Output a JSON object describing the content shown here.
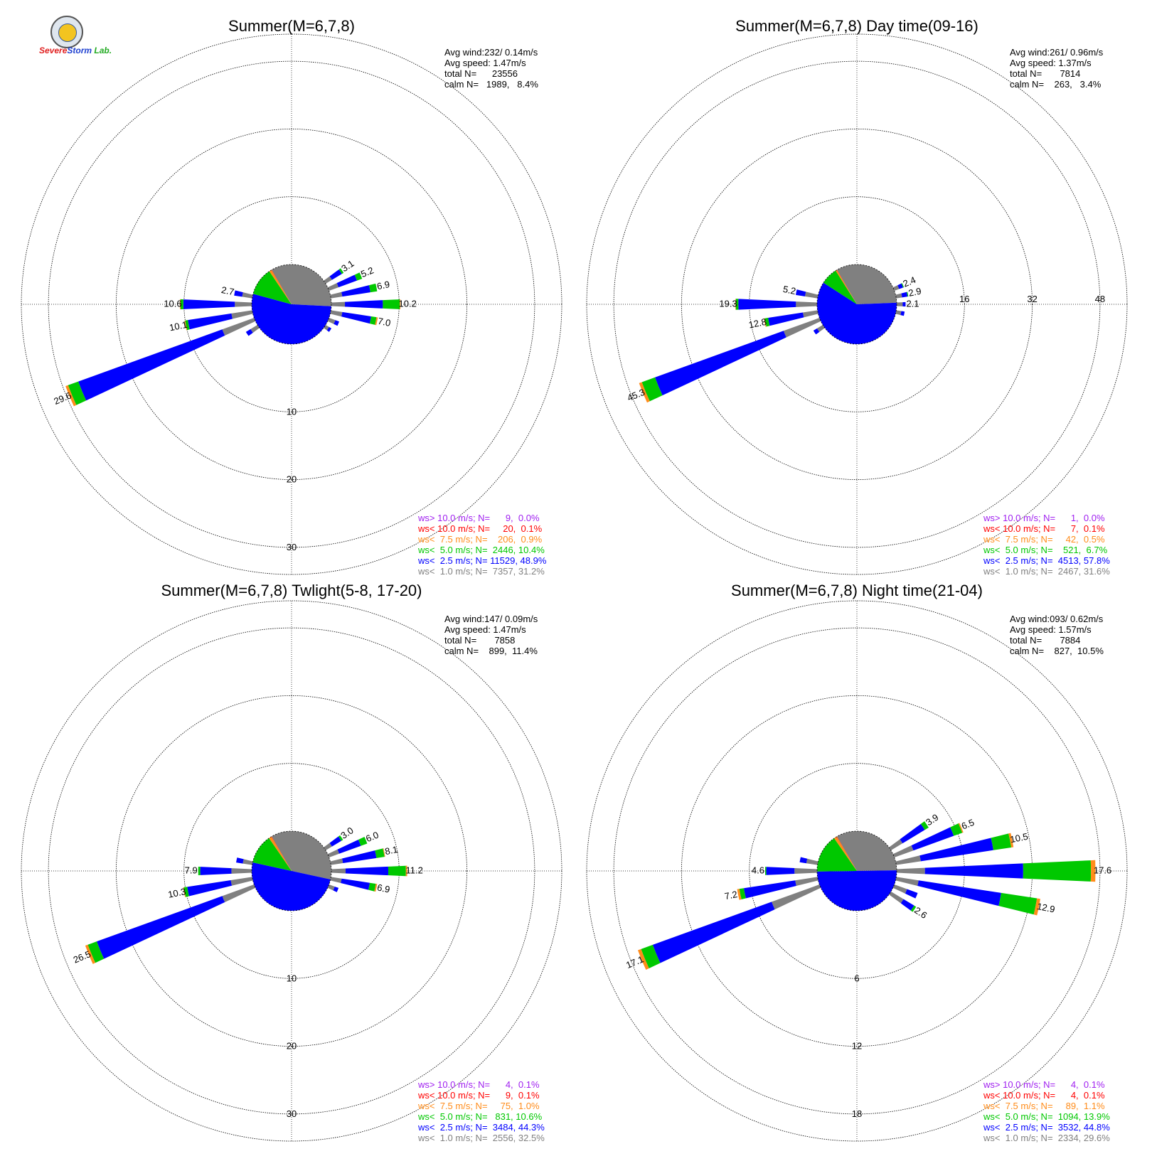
{
  "logo": {
    "text_severe": "Severe",
    "text_storm": "Storm",
    "text_lab": "Lab."
  },
  "chart_data": [
    {
      "type": "wind-rose",
      "title": "Summer(M=6,7,8)",
      "radial_ticks": [
        "10",
        "20",
        "30"
      ],
      "radial_max": 34,
      "radial_tick_position": "bottom",
      "stats": [
        "Avg wind:232/ 0.14m/s",
        "Avg speed: 1.47m/s",
        "total N=      23556",
        "calm N=   1989,   8.4%"
      ],
      "legend": [
        {
          "text": "ws> 10.0 m/s; N=      9,  0.0%",
          "color": "#a020f0"
        },
        {
          "text": "ws< 10.0 m/s; N=     20,  0.1%",
          "color": "#ff0000"
        },
        {
          "text": "ws<  7.5 m/s; N=    206,  0.9%",
          "color": "#ff8c1a"
        },
        {
          "text": "ws<  5.0 m/s; N=  2446, 10.4%",
          "color": "#00c800"
        },
        {
          "text": "ws<  2.5 m/s; N= 11529, 48.9%",
          "color": "#0000ff"
        },
        {
          "text": "ws<  1.0 m/s; N=  7357, 31.2%",
          "color": "#808080"
        }
      ],
      "calm_pie": [
        {
          "value": 31.2,
          "color": "#808080"
        },
        {
          "value": 48.9,
          "color": "#0000ff"
        },
        {
          "value": 10.4,
          "color": "#00c800"
        },
        {
          "value": 0.9,
          "color": "#ff8c1a"
        },
        {
          "value": 0.1,
          "color": "#ff0000"
        }
      ],
      "petals": [
        {
          "dir": 56.25,
          "total": 3.1,
          "label": "3.1",
          "gray": 1.1,
          "blue": 1.7,
          "green": 0.3
        },
        {
          "dir": 67.5,
          "total": 5.2,
          "label": "5.2",
          "gray": 1.5,
          "blue": 2.9,
          "green": 0.8
        },
        {
          "dir": 78.75,
          "total": 6.9,
          "label": "6.9",
          "gray": 1.7,
          "blue": 4.2,
          "green": 1.0
        },
        {
          "dir": 90,
          "total": 10.2,
          "label": "10.2",
          "gray": 2.0,
          "blue": 5.6,
          "green": 2.5,
          "orange": 0.1
        },
        {
          "dir": 101.25,
          "total": 7.0,
          "label": "7.0",
          "gray": 1.7,
          "blue": 4.3,
          "green": 0.8,
          "orange": 0.2
        },
        {
          "dir": 258.75,
          "total": 10.1,
          "label": "10.1",
          "gray": 3.1,
          "blue": 6.5,
          "green": 0.4,
          "orange": 0.1
        },
        {
          "dir": 247.5,
          "total": 29.6,
          "label": "29.6",
          "gray": 5.0,
          "blue": 22.6,
          "green": 1.6,
          "orange": 0.4
        },
        {
          "dir": 270,
          "total": 10.6,
          "label": "10.6",
          "gray": 2.5,
          "blue": 7.6,
          "green": 0.4,
          "orange": 0.1
        },
        {
          "dir": 281.25,
          "total": 2.7,
          "label": "2.7",
          "gray": 1.5,
          "blue": 1.2
        },
        {
          "dir": 236.25,
          "total": 2.0,
          "gray": 1.2,
          "blue": 0.8
        },
        {
          "dir": 112.5,
          "total": 1.6,
          "gray": 1.0,
          "blue": 0.6
        },
        {
          "dir": 123.75,
          "total": 1.0,
          "gray": 0.6,
          "blue": 0.4
        }
      ]
    },
    {
      "type": "wind-rose",
      "title": "Summer(M=6,7,8) Day time(09-16)",
      "radial_ticks": [
        "16",
        "32",
        "48"
      ],
      "radial_max": 55,
      "radial_tick_position": "right",
      "stats": [
        "Avg wind:261/ 0.96m/s",
        "Avg speed: 1.37m/s",
        "total N=       7814",
        "calm N=    263,   3.4%"
      ],
      "legend": [
        {
          "text": "ws> 10.0 m/s; N=      1,  0.0%",
          "color": "#a020f0"
        },
        {
          "text": "ws< 10.0 m/s; N=      7,  0.1%",
          "color": "#ff0000"
        },
        {
          "text": "ws<  7.5 m/s; N=     42,  0.5%",
          "color": "#ff8c1a"
        },
        {
          "text": "ws<  5.0 m/s; N=    521,  6.7%",
          "color": "#00c800"
        },
        {
          "text": "ws<  2.5 m/s; N=  4513, 57.8%",
          "color": "#0000ff"
        },
        {
          "text": "ws<  1.0 m/s; N=  2467, 31.6%",
          "color": "#808080"
        }
      ],
      "calm_pie": [
        {
          "value": 31.6,
          "color": "#808080"
        },
        {
          "value": 57.8,
          "color": "#0000ff"
        },
        {
          "value": 6.7,
          "color": "#00c800"
        },
        {
          "value": 0.5,
          "color": "#ff8c1a"
        },
        {
          "value": 0.1,
          "color": "#ff0000"
        }
      ],
      "petals": [
        {
          "dir": 67.5,
          "total": 2.4,
          "label": "2.4",
          "gray": 1.2,
          "blue": 1.0,
          "green": 0.2
        },
        {
          "dir": 78.75,
          "total": 2.9,
          "label": "2.9",
          "gray": 1.4,
          "blue": 1.3,
          "green": 0.2
        },
        {
          "dir": 90,
          "total": 2.1,
          "label": "2.1",
          "gray": 1.4,
          "blue": 0.7
        },
        {
          "dir": 281.25,
          "total": 5.2,
          "label": "5.2",
          "gray": 3.0,
          "blue": 2.2
        },
        {
          "dir": 270,
          "total": 19.3,
          "label": "19.3",
          "gray": 5.0,
          "blue": 13.6,
          "green": 0.6,
          "orange": 0.1
        },
        {
          "dir": 258.75,
          "total": 12.8,
          "label": "12.8",
          "gray": 3.5,
          "blue": 8.3,
          "green": 0.8,
          "orange": 0.2
        },
        {
          "dir": 247.5,
          "total": 45.3,
          "label": "45.3",
          "gray": 9.0,
          "blue": 32.3,
          "green": 3.3,
          "orange": 0.7
        },
        {
          "dir": 236.25,
          "total": 2.6,
          "gray": 1.6,
          "blue": 1.0
        },
        {
          "dir": 101.25,
          "total": 2.0,
          "gray": 1.2,
          "blue": 0.8
        }
      ]
    },
    {
      "type": "wind-rose",
      "title": "Summer(M=6,7,8) Twlight(5-8, 17-20)",
      "radial_ticks": [
        "10",
        "20",
        "30"
      ],
      "radial_max": 34,
      "radial_tick_position": "bottom",
      "stats": [
        "Avg wind:147/ 0.09m/s",
        "Avg speed: 1.47m/s",
        "total N=       7858",
        "calm N=    899,  11.4%"
      ],
      "legend": [
        {
          "text": "ws> 10.0 m/s; N=      4,  0.1%",
          "color": "#a020f0"
        },
        {
          "text": "ws< 10.0 m/s; N=      9,  0.1%",
          "color": "#ff0000"
        },
        {
          "text": "ws<  7.5 m/s; N=     75,  1.0%",
          "color": "#ff8c1a"
        },
        {
          "text": "ws<  5.0 m/s; N=   831, 10.6%",
          "color": "#00c800"
        },
        {
          "text": "ws<  2.5 m/s; N=  3484, 44.3%",
          "color": "#0000ff"
        },
        {
          "text": "ws<  1.0 m/s; N=  2556, 32.5%",
          "color": "#808080"
        }
      ],
      "calm_pie": [
        {
          "value": 32.5,
          "color": "#808080"
        },
        {
          "value": 44.3,
          "color": "#0000ff"
        },
        {
          "value": 10.6,
          "color": "#00c800"
        },
        {
          "value": 1.0,
          "color": "#ff8c1a"
        },
        {
          "value": 0.1,
          "color": "#ff0000"
        }
      ],
      "petals": [
        {
          "dir": 56.25,
          "total": 3.0,
          "label": "3.0",
          "gray": 1.1,
          "blue": 1.6,
          "green": 0.3
        },
        {
          "dir": 67.5,
          "total": 6.0,
          "label": "6.0",
          "gray": 1.6,
          "blue": 3.4,
          "green": 1.0
        },
        {
          "dir": 78.75,
          "total": 8.1,
          "label": "8.1",
          "gray": 1.8,
          "blue": 5.0,
          "green": 1.2,
          "orange": 0.1
        },
        {
          "dir": 90,
          "total": 11.2,
          "label": "11.2",
          "gray": 2.1,
          "blue": 6.3,
          "green": 2.6,
          "orange": 0.2
        },
        {
          "dir": 101.25,
          "total": 6.9,
          "label": "6.9",
          "gray": 1.6,
          "blue": 4.2,
          "green": 0.9,
          "orange": 0.2
        },
        {
          "dir": 270,
          "total": 7.9,
          "label": "7.9",
          "gray": 3.0,
          "blue": 4.6,
          "green": 0.3
        },
        {
          "dir": 258.75,
          "total": 10.3,
          "label": "10.3",
          "gray": 3.2,
          "blue": 6.5,
          "green": 0.5,
          "orange": 0.1
        },
        {
          "dir": 247.5,
          "total": 26.5,
          "label": "26.5",
          "gray": 5.0,
          "blue": 19.7,
          "green": 1.4,
          "orange": 0.4
        },
        {
          "dir": 281.25,
          "total": 2.4,
          "gray": 1.4,
          "blue": 1.0
        },
        {
          "dir": 112.5,
          "total": 1.5,
          "gray": 0.9,
          "blue": 0.6
        }
      ]
    },
    {
      "type": "wind-rose",
      "title": "Summer(M=6,7,8) Night time(21-04)",
      "radial_ticks": [
        "6",
        "12",
        "18"
      ],
      "radial_max": 20.4,
      "radial_tick_position": "bottom",
      "stats": [
        "Avg wind:093/ 0.62m/s",
        "Avg speed: 1.57m/s",
        "total N=       7884",
        "calm N=    827,  10.5%"
      ],
      "legend": [
        {
          "text": "ws> 10.0 m/s; N=      4,  0.1%",
          "color": "#a020f0"
        },
        {
          "text": "ws< 10.0 m/s; N=      4,  0.1%",
          "color": "#ff0000"
        },
        {
          "text": "ws<  7.5 m/s; N=     89,  1.1%",
          "color": "#ff8c1a"
        },
        {
          "text": "ws<  5.0 m/s; N=  1094, 13.9%",
          "color": "#00c800"
        },
        {
          "text": "ws<  2.5 m/s; N=  3532, 44.8%",
          "color": "#0000ff"
        },
        {
          "text": "ws<  1.0 m/s; N=  2334, 29.6%",
          "color": "#808080"
        }
      ],
      "calm_pie": [
        {
          "value": 29.6,
          "color": "#808080"
        },
        {
          "value": 44.8,
          "color": "#0000ff"
        },
        {
          "value": 13.9,
          "color": "#00c800"
        },
        {
          "value": 1.1,
          "color": "#ff8c1a"
        },
        {
          "value": 0.1,
          "color": "#ff0000"
        }
      ],
      "petals": [
        {
          "dir": 56.25,
          "total": 3.9,
          "label": "3.9",
          "gray": 1.2,
          "blue": 2.3,
          "green": 0.4
        },
        {
          "dir": 67.5,
          "total": 6.5,
          "label": "6.5",
          "gray": 1.8,
          "blue": 3.8,
          "green": 0.8,
          "orange": 0.1
        },
        {
          "dir": 78.75,
          "total": 10.5,
          "label": "10.5",
          "gray": 2.2,
          "blue": 6.5,
          "green": 1.6,
          "orange": 0.2
        },
        {
          "dir": 90,
          "total": 17.6,
          "label": "17.6",
          "gray": 2.5,
          "blue": 8.7,
          "green": 6.0,
          "orange": 0.4
        },
        {
          "dir": 101.25,
          "total": 12.9,
          "label": "12.9",
          "gray": 2.0,
          "blue": 7.4,
          "green": 3.2,
          "orange": 0.3
        },
        {
          "dir": 123.75,
          "total": 2.6,
          "label": "2.6",
          "gray": 1.3,
          "blue": 1.1,
          "green": 0.2
        },
        {
          "dir": 270,
          "total": 4.6,
          "label": "4.6",
          "gray": 2.0,
          "blue": 2.5,
          "green": 0.1
        },
        {
          "dir": 258.75,
          "total": 7.2,
          "label": "7.2",
          "gray": 2.0,
          "blue": 4.6,
          "green": 0.4,
          "orange": 0.2
        },
        {
          "dir": 247.5,
          "total": 17.1,
          "label": "17.1",
          "gray": 4.5,
          "blue": 11.2,
          "green": 1.1,
          "orange": 0.3
        },
        {
          "dir": 112.5,
          "total": 2.2,
          "gray": 1.2,
          "blue": 1.0
        },
        {
          "dir": 281.25,
          "total": 1.6,
          "gray": 1.0,
          "blue": 0.6
        }
      ]
    }
  ]
}
